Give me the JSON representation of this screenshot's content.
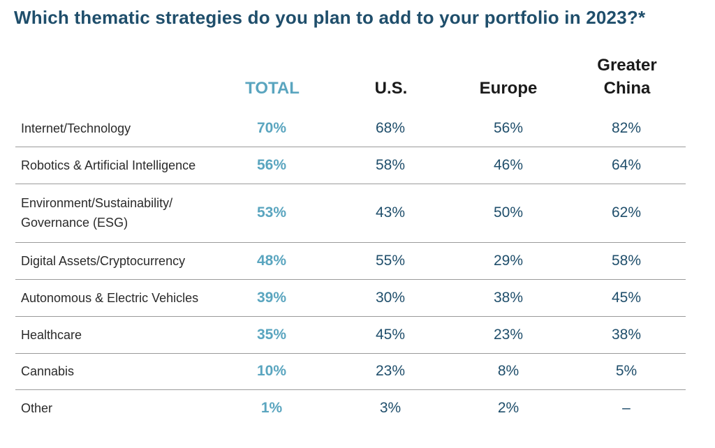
{
  "title": "Which thematic strategies do you plan to add to your portfolio in 2023?*",
  "chart_data": {
    "type": "table",
    "title": "Which thematic strategies do you plan to add to your portfolio in 2023?*",
    "columns": [
      "TOTAL",
      "U.S.",
      "Europe",
      "Greater China"
    ],
    "column_lines": {
      "total": [
        "TOTAL"
      ],
      "us": [
        "U.S."
      ],
      "europe": [
        "Europe"
      ],
      "china": [
        "Greater",
        "China"
      ]
    },
    "rows": [
      {
        "label": [
          "Internet/Technology"
        ],
        "values": [
          "70%",
          "68%",
          "56%",
          "82%"
        ]
      },
      {
        "label": [
          "Robotics & Artificial Intelligence"
        ],
        "values": [
          "56%",
          "58%",
          "46%",
          "64%"
        ]
      },
      {
        "label": [
          "Environment/Sustainability/",
          "Governance (ESG)"
        ],
        "values": [
          "53%",
          "43%",
          "50%",
          "62%"
        ]
      },
      {
        "label": [
          "Digital Assets/Cryptocurrency"
        ],
        "values": [
          "48%",
          "55%",
          "29%",
          "58%"
        ]
      },
      {
        "label": [
          "Autonomous & Electric Vehicles"
        ],
        "values": [
          "39%",
          "30%",
          "38%",
          "45%"
        ]
      },
      {
        "label": [
          "Healthcare"
        ],
        "values": [
          "35%",
          "45%",
          "23%",
          "38%"
        ]
      },
      {
        "label": [
          "Cannabis"
        ],
        "values": [
          "10%",
          "23%",
          "8%",
          "5%"
        ]
      },
      {
        "label": [
          "Other"
        ],
        "values": [
          "1%",
          "3%",
          "2%",
          "–"
        ]
      }
    ]
  }
}
